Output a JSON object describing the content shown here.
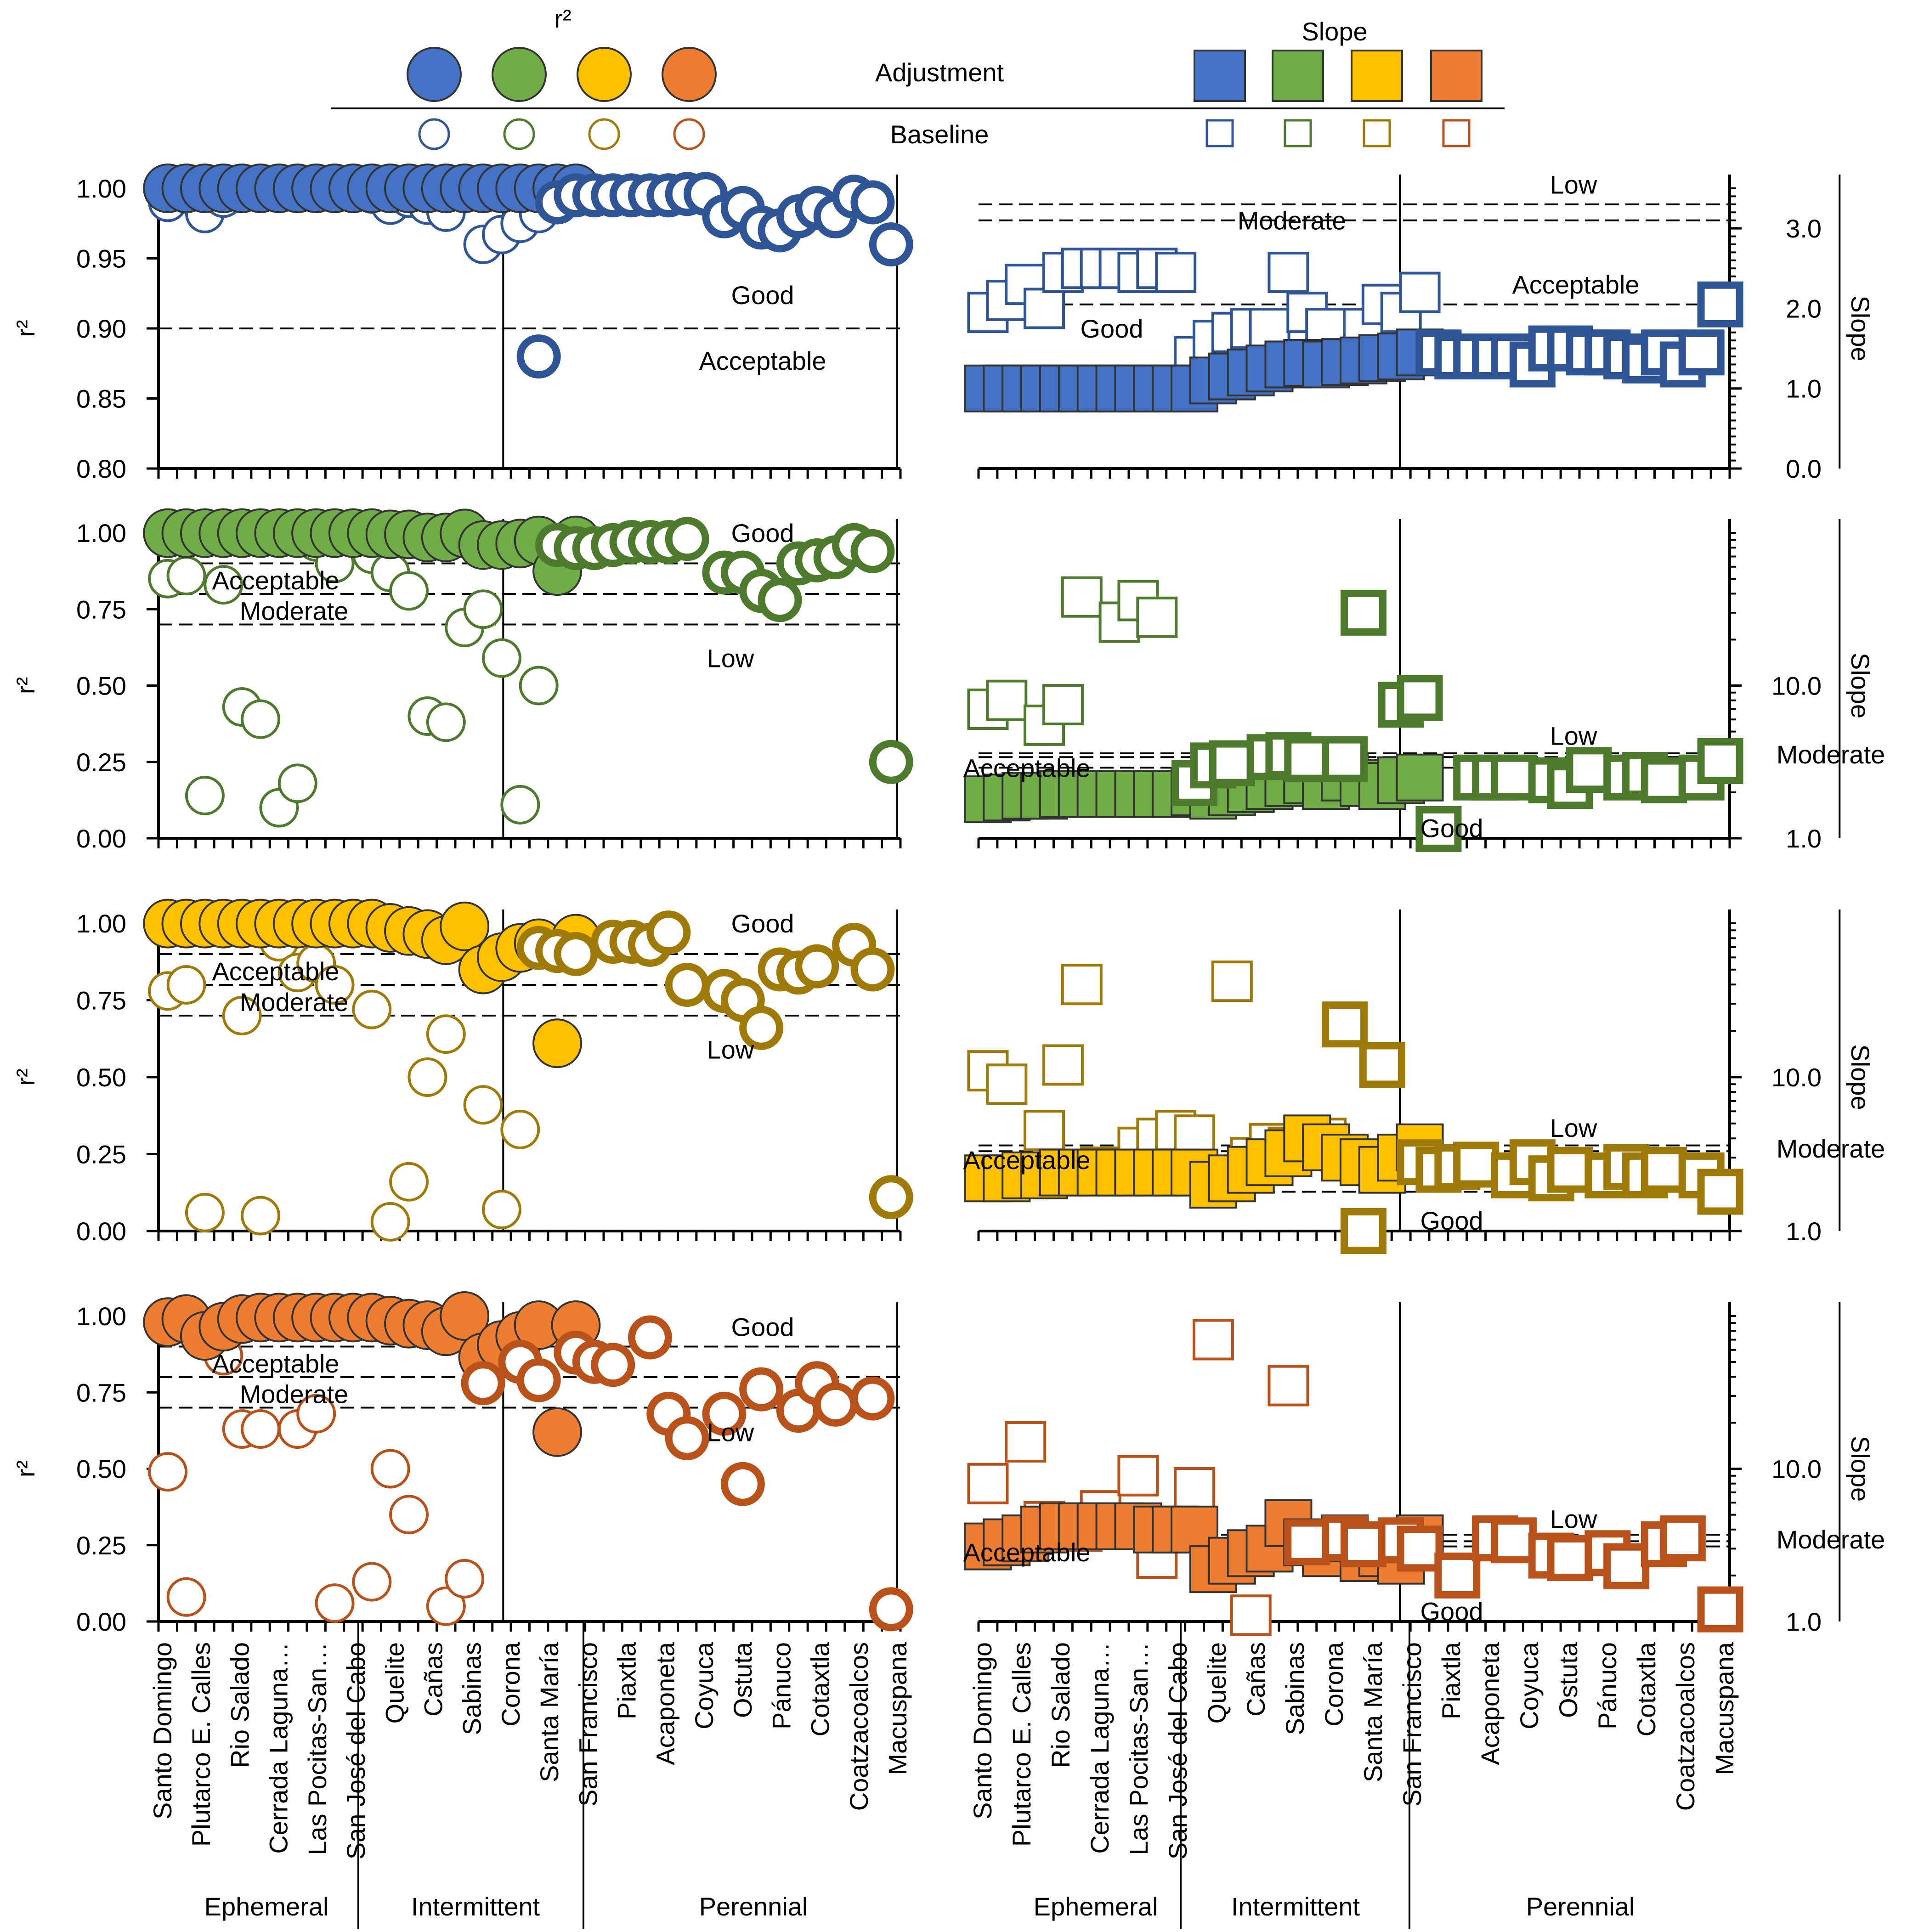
{
  "legend": {
    "r2_title": "r²",
    "slope_title": "Slope",
    "adjustment_label": "Adjustment",
    "baseline_label": "Baseline"
  },
  "colors": {
    "blue": {
      "fill": "#4472C4",
      "stroke": "#2F5597"
    },
    "green": {
      "fill": "#70AD47",
      "stroke": "#4E7A2E"
    },
    "gold": {
      "fill": "#FFC000",
      "stroke": "#A07A08"
    },
    "orange": {
      "fill": "#ED7D31",
      "stroke": "#B8521A"
    }
  },
  "categories_left": [
    "Santo Domingo",
    "Plutarco E. Calles",
    "Rio Salado",
    "Cerrada Laguna…",
    "Las Pocitas-San…",
    "San José del Cabo",
    "Quelite",
    "Cañas",
    "Sabinas",
    "Corona",
    "Santa María",
    "San Francisco",
    "Piaxtla",
    "Acaponeta",
    "Coyuca",
    "Ostuta",
    "Pánuco",
    "Cotaxtla",
    "Coatzacoalcos",
    "Macuspana"
  ],
  "categories_right": [
    "Santo Domingo",
    "Plutarco E. Calles",
    "Rio Salado",
    "Cerrada Laguna…",
    "Las Pocitas-San…",
    "San José del Cabo",
    "Quelite",
    "Cañas",
    "Sabinas",
    "Corona",
    "Santa María",
    "San Francisco",
    "Piaxtla",
    "Acaponeta",
    "Coyuca",
    "Ostuta",
    "Pánuco",
    "Cotaxtla",
    "Coatzacoalcos",
    "Macuspana"
  ],
  "groups_left": [
    "Ephemeral",
    "Intermittent",
    "Perennial"
  ],
  "groups_right": [
    "Ephemeral",
    "Intermittent",
    "Perennial"
  ],
  "chart_data": [
    {
      "type": "scatter",
      "panel": "r2-blue",
      "color": "blue",
      "ylabel": "r²",
      "ylim": [
        0.8,
        1.0
      ],
      "ticks": [
        "1.00",
        "0.95",
        "0.90",
        "0.85",
        "0.80"
      ],
      "x_count": 40,
      "group_breaks": [
        10.5,
        22.5
      ],
      "thresholds": [
        {
          "value": 0.9
        }
      ],
      "zones": [
        {
          "label": "Good",
          "value": 0.924
        },
        {
          "label": "Acceptable",
          "value": 0.877
        }
      ],
      "adjustment": [
        1.0,
        1.0,
        1.0,
        1.0,
        1.0,
        1.0,
        1.0,
        1.0,
        1.0,
        1.0,
        1.0,
        1.0,
        1.0,
        1.0,
        1.0,
        1.0,
        1.0,
        1.0,
        1.0,
        1.0,
        1.0,
        1.0,
        1.0
      ],
      "baseline": [
        0.99,
        0.996,
        0.982,
        0.993,
        0.997,
        0.998,
        0.998,
        0.997,
        0.998,
        0.998,
        0.998,
        0.997,
        0.996,
        0.99,
        0.988,
        0.993,
        0.988,
        0.983,
        0.998,
        0.96,
        0.967,
        0.975,
        0.982,
        0.88,
        0.99,
        0.995,
        0.995,
        0.995,
        0.995,
        0.995,
        0.995,
        0.995,
        0.996,
        0.996,
        0.98,
        0.986,
        0.972,
        0.97,
        0.98,
        0.986,
        0.986,
        0.98,
        0.994,
        0.99,
        0.96
      ],
      "baseline_on_top": [
        false,
        false,
        false,
        false,
        false,
        false,
        false,
        false,
        false,
        false,
        false,
        false,
        false,
        false,
        false,
        false,
        false,
        false,
        false,
        false,
        false,
        false,
        false,
        true,
        true,
        true,
        true,
        true,
        true,
        true,
        true,
        true,
        true,
        true,
        true,
        true,
        true,
        true,
        true,
        true,
        true,
        true,
        true,
        true,
        true
      ]
    },
    {
      "type": "scatter",
      "panel": "r2-green",
      "color": "green",
      "ylabel": "r²",
      "ylim": [
        0.0,
        1.0
      ],
      "ticks": [
        "1.00",
        "0.75",
        "0.50",
        "0.25",
        "0.00"
      ],
      "x_count": 40,
      "group_breaks": [
        10.5,
        22.5
      ],
      "thresholds": [
        {
          "value": 0.9
        },
        {
          "value": 0.8
        },
        {
          "value": 0.7
        }
      ],
      "zones": [
        {
          "label": "Good",
          "value": 1.0
        },
        {
          "label": "Acceptable",
          "value": 0.845
        },
        {
          "label": "Moderate",
          "value": 0.745
        },
        {
          "label": "Low",
          "value": 0.59
        }
      ],
      "adjustment": [
        0.999,
        0.999,
        0.999,
        0.999,
        0.999,
        0.999,
        0.999,
        0.999,
        0.999,
        0.999,
        0.999,
        0.999,
        0.995,
        0.995,
        0.985,
        0.985,
        0.998,
        0.96,
        0.96,
        0.965,
        0.975,
        0.875,
        0.975
      ],
      "baseline": [
        0.85,
        0.86,
        0.14,
        0.83,
        0.43,
        0.39,
        0.1,
        0.18,
        0.97,
        0.9,
        0.93,
        0.87,
        0.81,
        0.4,
        0.38,
        0.69,
        0.75,
        0.59,
        0.11,
        0.5,
        0.96,
        0.95,
        0.95,
        0.96,
        0.97,
        0.97,
        0.97,
        0.98,
        0.87,
        0.87,
        0.81,
        0.78,
        0.9,
        0.91,
        0.92,
        0.96,
        0.94,
        0.25
      ],
      "baseline_on_top": [
        false,
        false,
        false,
        false,
        false,
        false,
        false,
        false,
        false,
        false,
        false,
        false,
        false,
        false,
        false,
        false,
        false,
        false,
        false,
        false,
        true,
        true,
        true,
        true,
        true,
        true,
        true,
        true,
        true,
        true,
        true,
        true,
        true,
        true,
        true,
        true,
        true,
        true
      ]
    },
    {
      "type": "scatter",
      "panel": "r2-gold",
      "color": "gold",
      "ylabel": "r²",
      "ylim": [
        0.0,
        1.0
      ],
      "ticks": [
        "1.00",
        "0.75",
        "0.50",
        "0.25",
        "0.00"
      ],
      "x_count": 40,
      "group_breaks": [
        10.5,
        22.5
      ],
      "thresholds": [
        {
          "value": 0.9
        },
        {
          "value": 0.8
        },
        {
          "value": 0.7
        }
      ],
      "zones": [
        {
          "label": "Good",
          "value": 1.0
        },
        {
          "label": "Acceptable",
          "value": 0.845
        },
        {
          "label": "Moderate",
          "value": 0.745
        },
        {
          "label": "Low",
          "value": 0.59
        }
      ],
      "adjustment": [
        0.999,
        0.999,
        0.999,
        0.999,
        0.999,
        0.999,
        0.999,
        0.999,
        0.999,
        0.999,
        0.999,
        0.999,
        0.985,
        0.975,
        0.965,
        0.945,
        0.99,
        0.85,
        0.89,
        0.92,
        0.935,
        0.61,
        0.95
      ],
      "baseline": [
        0.78,
        0.8,
        0.06,
        0.7,
        0.05,
        0.94,
        0.84,
        0.87,
        0.8,
        0.72,
        0.03,
        0.16,
        0.5,
        0.64,
        0.41,
        0.07,
        0.33,
        0.92,
        0.91,
        0.9,
        0.94,
        0.94,
        0.93,
        0.97,
        0.8,
        0.78,
        0.75,
        0.66,
        0.85,
        0.84,
        0.86,
        0.93,
        0.85,
        0.11
      ],
      "baseline_on_top": [
        false,
        false,
        false,
        false,
        false,
        false,
        false,
        false,
        false,
        false,
        false,
        false,
        false,
        false,
        false,
        false,
        false,
        true,
        true,
        true,
        true,
        true,
        true,
        true,
        true,
        true,
        true,
        true,
        true,
        true,
        true,
        true,
        true,
        true
      ]
    },
    {
      "type": "scatter",
      "panel": "r2-orange",
      "color": "orange",
      "ylabel": "r²",
      "ylim": [
        0.0,
        1.0
      ],
      "ticks": [
        "1.00",
        "0.75",
        "0.50",
        "0.25",
        "0.00"
      ],
      "x_count": 40,
      "group_breaks": [
        10.5,
        22.5
      ],
      "thresholds": [
        {
          "value": 0.9
        },
        {
          "value": 0.8
        },
        {
          "value": 0.7
        }
      ],
      "zones": [
        {
          "label": "Good",
          "value": 0.965
        },
        {
          "label": "Acceptable",
          "value": 0.845
        },
        {
          "label": "Moderate",
          "value": 0.745
        },
        {
          "label": "Low",
          "value": 0.62
        }
      ],
      "adjustment": [
        0.98,
        0.99,
        0.935,
        0.965,
        0.99,
        0.995,
        0.995,
        0.995,
        0.995,
        0.995,
        0.995,
        0.995,
        0.985,
        0.975,
        0.97,
        0.95,
        1.0,
        0.865,
        0.905,
        0.935,
        0.97,
        0.62,
        0.97
      ],
      "baseline": [
        0.49,
        0.08,
        0.87,
        0.63,
        0.63,
        0.63,
        0.68,
        0.06,
        0.13,
        0.5,
        0.35,
        0.05,
        0.14,
        0.78,
        0.85,
        0.79,
        0.88,
        0.85,
        0.84,
        0.93,
        0.68,
        0.6,
        0.68,
        0.45,
        0.76,
        0.69,
        0.78,
        0.71,
        0.73,
        0.04
      ],
      "baseline_on_top": [
        false,
        false,
        false,
        false,
        false,
        false,
        false,
        false,
        false,
        false,
        false,
        false,
        false,
        true,
        true,
        true,
        true,
        true,
        true,
        true,
        true,
        true,
        true,
        true,
        true,
        true,
        true,
        true,
        true,
        true
      ]
    },
    {
      "type": "scatter",
      "panel": "slope-blue",
      "color": "blue",
      "ylabel": "Slope",
      "scale": "linear",
      "ylim": [
        0.0,
        3.5
      ],
      "ticks": [
        "3.0",
        "2.0",
        "1.0",
        "0.0"
      ],
      "x_count": 40,
      "group_breaks": [
        11.5,
        23.5
      ],
      "thresholds": [
        {
          "value": 3.3
        },
        {
          "value": 3.1
        },
        {
          "value": 2.05
        }
      ],
      "zones": [
        {
          "label": "Low",
          "value": 3.55
        },
        {
          "label": "Moderate",
          "value": 3.1
        },
        {
          "label": "Acceptable",
          "value": 2.3
        },
        {
          "label": "Good",
          "value": 1.75
        }
      ],
      "adjustment": [
        1.0,
        1.0,
        1.0,
        1.0,
        1.0,
        1.0,
        1.0,
        1.0,
        1.0,
        1.0,
        1.0,
        1.0,
        1.1,
        1.15,
        1.2,
        1.25,
        1.3,
        1.32,
        1.3,
        1.33,
        1.35,
        1.38,
        1.4,
        1.45
      ],
      "baseline": [
        1.95,
        2.1,
        2.3,
        2.0,
        2.45,
        2.5,
        2.5,
        2.5,
        2.45,
        2.5,
        2.45,
        1.4,
        1.6,
        1.7,
        1.75,
        1.75,
        2.45,
        1.95,
        1.75,
        1.75,
        2.05,
        1.95,
        2.2,
        1.45,
        1.4,
        1.4,
        1.4,
        1.4,
        1.3,
        1.5,
        1.5,
        1.45,
        1.45,
        1.4,
        1.35,
        1.45,
        1.3,
        1.45,
        2.05
      ],
      "baseline_on_top": [
        false,
        false,
        false,
        false,
        false,
        false,
        false,
        false,
        false,
        false,
        false,
        false,
        false,
        false,
        false,
        false,
        false,
        false,
        false,
        false,
        false,
        false,
        false,
        true,
        true,
        true,
        true,
        true,
        true,
        true,
        true,
        true,
        true,
        true,
        true,
        true,
        true,
        true,
        true
      ]
    },
    {
      "type": "scatter",
      "panel": "slope-green",
      "color": "green",
      "ylabel": "Slope",
      "scale": "log",
      "ylim": [
        1.0,
        100.0
      ],
      "ticks": [
        "10.0",
        "1.0"
      ],
      "x_count": 40,
      "group_breaks": [
        11.5,
        23.5
      ],
      "thresholds": [
        {
          "value": 3.6
        },
        {
          "value": 3.4
        },
        {
          "value": 2.9
        }
      ],
      "zones": [
        {
          "label": "Low",
          "value": 4.7
        },
        {
          "label": "Moderate",
          "value": 3.55
        },
        {
          "label": "Acceptable",
          "value": 2.9
        },
        {
          "label": "Good",
          "value": 1.17
        }
      ],
      "adjustment": [
        1.8,
        1.85,
        1.9,
        1.9,
        1.95,
        1.95,
        1.95,
        1.95,
        1.95,
        1.95,
        1.95,
        2.0,
        1.9,
        2.0,
        2.1,
        2.2,
        2.3,
        2.4,
        2.2,
        2.5,
        2.3,
        2.2,
        2.4,
        2.5
      ],
      "baseline": [
        7.0,
        8.0,
        5.5,
        7.5,
        38.0,
        26.0,
        36.0,
        28.0,
        2.3,
        3.0,
        3.1,
        3.4,
        3.5,
        3.3,
        3.3,
        30.0,
        7.5,
        8.3,
        1.15,
        2.5,
        2.5,
        2.5,
        2.4,
        2.2,
        2.8,
        2.5,
        2.6,
        2.4,
        2.5,
        3.2
      ],
      "baseline_on_top": [
        false,
        false,
        false,
        false,
        false,
        false,
        false,
        false,
        true,
        true,
        true,
        true,
        true,
        true,
        true,
        true,
        true,
        true,
        true,
        true,
        true,
        true,
        true,
        true,
        true,
        true,
        true,
        true,
        true,
        true
      ]
    },
    {
      "type": "scatter",
      "panel": "slope-gold",
      "color": "gold",
      "ylabel": "Slope",
      "scale": "log",
      "ylim": [
        1.0,
        100.0
      ],
      "ticks": [
        "10.0",
        "1.0"
      ],
      "x_count": 40,
      "group_breaks": [
        11.5,
        23.5
      ],
      "thresholds": [
        {
          "value": 3.6
        },
        {
          "value": 3.3
        },
        {
          "value": 1.8
        }
      ],
      "zones": [
        {
          "label": "Low",
          "value": 4.7
        },
        {
          "label": "Moderate",
          "value": 3.45
        },
        {
          "label": "Acceptable",
          "value": 2.9
        },
        {
          "label": "Good",
          "value": 1.17
        }
      ],
      "adjustment": [
        2.2,
        2.2,
        2.3,
        2.3,
        2.4,
        2.4,
        2.4,
        2.4,
        2.4,
        2.4,
        2.4,
        2.4,
        2.0,
        2.2,
        2.5,
        2.8,
        3.2,
        4.0,
        3.5,
        3.0,
        2.8,
        2.5,
        3.0,
        3.5
      ],
      "baseline": [
        11.0,
        9.0,
        4.5,
        12.0,
        40.0,
        2.6,
        3.5,
        4.0,
        4.5,
        4.2,
        42.0,
        3.0,
        3.7,
        3.5,
        4.0,
        22.0,
        1.0,
        12.0,
        2.8,
        2.5,
        2.6,
        2.7,
        2.3,
        2.8,
        2.2,
        2.5,
        2.3,
        2.6,
        2.3,
        2.5,
        2.3,
        1.8
      ],
      "baseline_on_top": [
        false,
        false,
        false,
        false,
        false,
        false,
        false,
        false,
        false,
        false,
        false,
        false,
        false,
        false,
        false,
        true,
        true,
        true,
        true,
        true,
        true,
        true,
        true,
        true,
        true,
        true,
        true,
        true,
        true,
        true,
        true,
        true
      ]
    },
    {
      "type": "scatter",
      "panel": "slope-orange",
      "color": "orange",
      "ylabel": "Slope",
      "scale": "log",
      "ylim": [
        1.0,
        100.0
      ],
      "ticks": [
        "10.0",
        "1.0"
      ],
      "x_count": 40,
      "group_breaks": [
        11.5,
        23.5
      ],
      "thresholds": [
        {
          "value": 3.7
        },
        {
          "value": 3.35
        },
        {
          "value": 3.1
        }
      ],
      "zones": [
        {
          "label": "Low",
          "value": 4.7
        },
        {
          "label": "Moderate",
          "value": 3.45
        },
        {
          "label": "Acceptable",
          "value": 2.85
        },
        {
          "label": "Good",
          "value": 1.17
        }
      ],
      "adjustment": [
        3.1,
        3.3,
        3.5,
        4.0,
        4.2,
        4.2,
        4.2,
        4.2,
        4.2,
        4.0,
        4.0,
        4.0,
        2.2,
        2.5,
        2.8,
        3.0,
        4.4,
        3.3,
        2.8,
        3.5,
        2.6,
        2.8,
        2.5,
        3.5
      ],
      "baseline": [
        8.0,
        15.0,
        4.5,
        3.9,
        5.3,
        9.0,
        2.6,
        7.5,
        70.0,
        1.1,
        35.0,
        3.3,
        3.5,
        3.2,
        3.4,
        3.0,
        2.0,
        3.5,
        3.4,
        2.7,
        2.6,
        2.8,
        2.3,
        3.2,
        3.5,
        1.2
      ],
      "baseline_on_top": [
        false,
        false,
        false,
        false,
        false,
        false,
        false,
        false,
        false,
        false,
        false,
        true,
        true,
        true,
        true,
        true,
        true,
        true,
        true,
        true,
        true,
        true,
        true,
        true,
        true,
        true
      ]
    }
  ]
}
